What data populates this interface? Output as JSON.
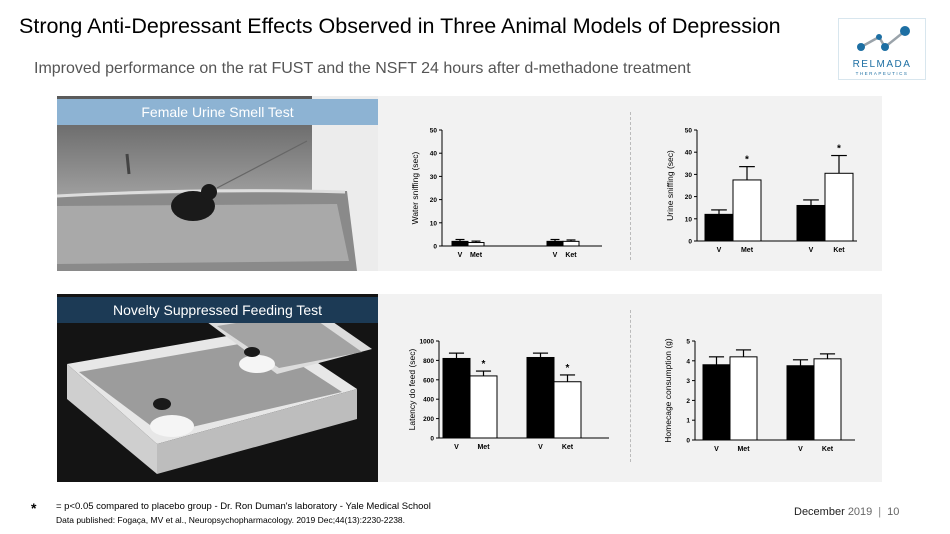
{
  "slide": {
    "title": "Strong Anti-Depressant Effects Observed in Three Animal Models of Depression",
    "subtitle": "Improved performance on the rat FUST and the NSFT 24 hours after d-methadone treatment",
    "logo_name": "RELMADA",
    "logo_sub": "THERAPEUTICS",
    "footer_star": "*",
    "footer_line1": "= p<0.05 compared to placebo group  - Dr. Ron Duman's laboratory - Yale Medical School",
    "footer_line2": "Data published: Fogaça, MV et al., Neuropsychopharmacology. 2019 Dec;44(13):2230-2238.",
    "date_month": "December",
    "date_year": "2019",
    "date_sep": "|",
    "page_number": "10"
  },
  "panels": [
    {
      "banner": "Female Urine Smell Test",
      "banner_color": "#8db3d3"
    },
    {
      "banner": "Novelty Suppressed Feeding Test",
      "banner_color": "#1c3a55"
    }
  ],
  "colors": {
    "bar_vehicle": "#000000",
    "bar_treated": "#ffffff",
    "logo_blue": "#1d6fa3",
    "panel_bg": "#f2f2f2"
  },
  "chart_data": [
    {
      "type": "bar",
      "ylabel": "Water sniffing (sec)",
      "ylim": [
        0,
        50
      ],
      "yticks": [
        "0",
        "10",
        "20",
        "30",
        "40",
        "50"
      ],
      "categories": [
        "V",
        "Met",
        "V",
        "Ket"
      ],
      "values": [
        2,
        1.5,
        2,
        2
      ],
      "errors": [
        0.8,
        0.6,
        0.8,
        0.6
      ],
      "fills": [
        "v",
        "t",
        "v",
        "t"
      ],
      "significant": [
        "",
        "",
        "",
        ""
      ]
    },
    {
      "type": "bar",
      "ylabel": "Urine sniffing (sec)",
      "ylim": [
        0,
        50
      ],
      "yticks": [
        "0",
        "10",
        "20",
        "30",
        "40",
        "50"
      ],
      "categories": [
        "V",
        "Met",
        "V",
        "Ket"
      ],
      "values": [
        12,
        27.5,
        16,
        30.5
      ],
      "errors": [
        2,
        6,
        2.5,
        8
      ],
      "fills": [
        "v",
        "t",
        "v",
        "t"
      ],
      "significant": [
        "",
        "*",
        "",
        "*"
      ]
    },
    {
      "type": "bar",
      "ylabel": "Latency do feed (sec)",
      "ylim": [
        0,
        1000
      ],
      "yticks": [
        "0",
        "200",
        "400",
        "600",
        "800",
        "1000"
      ],
      "categories": [
        "V",
        "Met",
        "V",
        "Ket"
      ],
      "values": [
        820,
        640,
        830,
        580
      ],
      "errors": [
        55,
        50,
        45,
        70
      ],
      "fills": [
        "v",
        "t",
        "v",
        "t"
      ],
      "significant": [
        "",
        "*",
        "",
        "*"
      ]
    },
    {
      "type": "bar",
      "ylabel": "Homecage consumption (g)",
      "ylim": [
        0,
        5
      ],
      "yticks": [
        "0",
        "1",
        "2",
        "3",
        "4",
        "5"
      ],
      "categories": [
        "V",
        "Met",
        "V",
        "Ket"
      ],
      "values": [
        3.8,
        4.2,
        3.75,
        4.1
      ],
      "errors": [
        0.4,
        0.35,
        0.3,
        0.25
      ],
      "fills": [
        "v",
        "t",
        "v",
        "t"
      ],
      "significant": [
        "",
        "",
        "",
        ""
      ]
    }
  ]
}
